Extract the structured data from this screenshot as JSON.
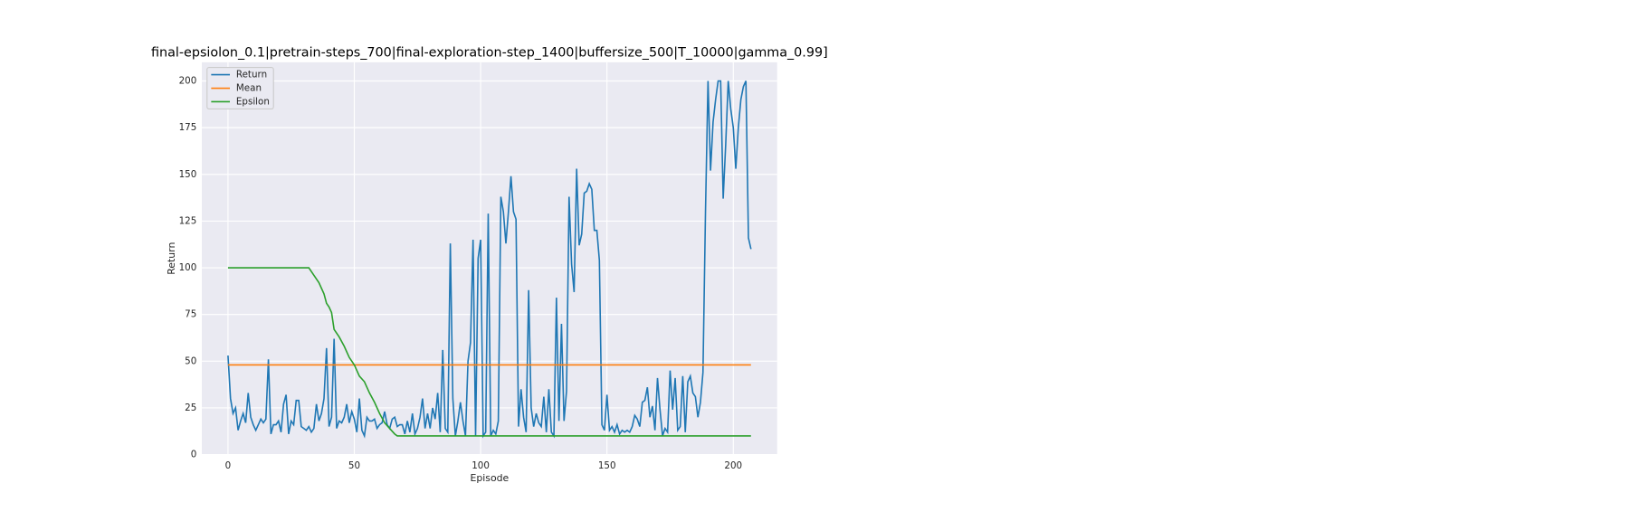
{
  "chart_data": {
    "type": "line",
    "title": "final-epsiolon_0.1|pretrain-steps_700|final-exploration-step_1400|buffersize_500|T_10000|gamma_0.99]",
    "xlabel": "Episode",
    "ylabel": "Return",
    "x": [
      0,
      1,
      2,
      3,
      4,
      5,
      6,
      7,
      8,
      9,
      10,
      11,
      12,
      13,
      14,
      15,
      16,
      17,
      18,
      19,
      20,
      21,
      22,
      23,
      24,
      25,
      26,
      27,
      28,
      29,
      30,
      31,
      32,
      33,
      34,
      35,
      36,
      37,
      38,
      39,
      40,
      41,
      42,
      43,
      44,
      45,
      46,
      47,
      48,
      49,
      50,
      51,
      52,
      53,
      54,
      55,
      56,
      57,
      58,
      59,
      60,
      61,
      62,
      63,
      64,
      65,
      66,
      67,
      68,
      69,
      70,
      71,
      72,
      73,
      74,
      75,
      76,
      77,
      78,
      79,
      80,
      81,
      82,
      83,
      84,
      85,
      86,
      87,
      88,
      89,
      90,
      91,
      92,
      93,
      94,
      95,
      96,
      97,
      98,
      99,
      100,
      101,
      102,
      103,
      104,
      105,
      106,
      107,
      108,
      109,
      110,
      111,
      112,
      113,
      114,
      115,
      116,
      117,
      118,
      119,
      120,
      121,
      122,
      123,
      124,
      125,
      126,
      127,
      128,
      129,
      130,
      131,
      132,
      133,
      134,
      135,
      136,
      137,
      138,
      139,
      140,
      141,
      142,
      143,
      144,
      145,
      146,
      147,
      148,
      149,
      150,
      151,
      152,
      153,
      154,
      155,
      156,
      157,
      158,
      159,
      160,
      161,
      162,
      163,
      164,
      165,
      166,
      167,
      168,
      169,
      170,
      171,
      172,
      173,
      174,
      175,
      176,
      177,
      178,
      179,
      180,
      181,
      182,
      183,
      184,
      185,
      186,
      187,
      188,
      189,
      190,
      191,
      192,
      193,
      194,
      195,
      196,
      197,
      198,
      199,
      200,
      201,
      202,
      203,
      204,
      205,
      206,
      207
    ],
    "series": [
      {
        "name": "Return",
        "color": "#1f77b4",
        "values": [
          53,
          30,
          22,
          25,
          13,
          18,
          22,
          17,
          33,
          20,
          16,
          13,
          16,
          19,
          17,
          19,
          51,
          11,
          16,
          16,
          18,
          12,
          27,
          32,
          11,
          18,
          16,
          29,
          29,
          15,
          14,
          13,
          15,
          12,
          14,
          27,
          18,
          22,
          30,
          57,
          15,
          20,
          62,
          14,
          18,
          17,
          20,
          27,
          17,
          23,
          19,
          12,
          30,
          13,
          10,
          20,
          18,
          18,
          19,
          14,
          16,
          17,
          23,
          16,
          14,
          19,
          20,
          15,
          16,
          16,
          11,
          18,
          12,
          22,
          11,
          14,
          20,
          30,
          14,
          22,
          14,
          25,
          19,
          33,
          12,
          56,
          14,
          12,
          113,
          30,
          10,
          18,
          28,
          18,
          10,
          50,
          60,
          115,
          10,
          105,
          115,
          10,
          12,
          129,
          10,
          13,
          11,
          18,
          138,
          130,
          113,
          130,
          149,
          130,
          126,
          15,
          35,
          20,
          12,
          88,
          25,
          15,
          22,
          17,
          15,
          31,
          12,
          35,
          12,
          10,
          84,
          18,
          70,
          18,
          34,
          138,
          102,
          87,
          153,
          112,
          118,
          140,
          141,
          145,
          142,
          120,
          120,
          104,
          16,
          13,
          32,
          13,
          15,
          12,
          16,
          11,
          13,
          12,
          13,
          12,
          15,
          21,
          19,
          15,
          28,
          29,
          36,
          20,
          26,
          13,
          41,
          24,
          10,
          14,
          12,
          45,
          24,
          41,
          13,
          15,
          42,
          12,
          39,
          42,
          33,
          31,
          20,
          28,
          44,
          130,
          200,
          152,
          178,
          190,
          200,
          200,
          137,
          166,
          200,
          185,
          175,
          153,
          175,
          190,
          197,
          200,
          116,
          110
        ]
      },
      {
        "name": "Mean",
        "color": "#ff7f0e",
        "x": [
          0,
          207
        ],
        "values": [
          48,
          48
        ]
      },
      {
        "name": "Epsilon",
        "color": "#2ca02c",
        "x": [
          0,
          32,
          34,
          36,
          38,
          39,
          40,
          41,
          42,
          44,
          46,
          48,
          50,
          52,
          54,
          56,
          58,
          60,
          62,
          64,
          66,
          67,
          207
        ],
        "values": [
          100,
          100,
          96,
          92,
          86,
          81,
          79,
          76,
          67,
          63,
          58,
          52,
          48,
          42,
          39,
          33,
          28,
          22,
          17,
          14,
          11,
          10,
          10
        ]
      }
    ],
    "xlim": [
      -10.35,
      217.35
    ],
    "ylim": [
      0,
      210
    ],
    "xticks": [
      0,
      50,
      100,
      150,
      200
    ],
    "yticks": [
      0,
      25,
      50,
      75,
      100,
      125,
      150,
      175,
      200
    ],
    "grid": true,
    "legend": "upper left",
    "background": "#eaeaf2"
  }
}
